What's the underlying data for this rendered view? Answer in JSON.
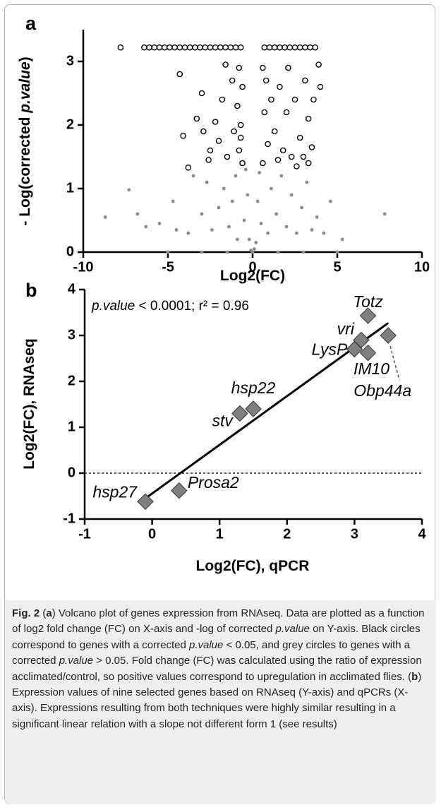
{
  "chart_data": [
    {
      "type": "scatter",
      "panel_label": "a",
      "xlabel": "Log2(FC)",
      "ylabel": [
        "- Log(corrected ",
        "p.value",
        ")"
      ],
      "xlim": [
        -10,
        10
      ],
      "xticks": [
        -10,
        -5,
        0,
        5,
        10
      ],
      "ylim": [
        0,
        3.5
      ],
      "yticks": [
        0,
        1,
        2,
        3
      ],
      "series": [
        {
          "color": "#000000",
          "fill": "#ffffff",
          "x": [
            -7.8,
            -6.4,
            -6.1,
            -5.8,
            -5.5,
            -5.2,
            -4.9,
            -4.6,
            -4.3,
            -4.0,
            -3.7,
            -3.4,
            -3.1,
            -2.8,
            -2.5,
            -2.2,
            -1.9,
            -1.6,
            -1.3,
            -1.0,
            -0.7,
            0.7,
            1.0,
            1.3,
            1.6,
            1.9,
            2.2,
            2.5,
            2.8,
            3.1,
            3.4,
            3.7,
            -4.3,
            -4.1,
            -3.8,
            -3.3,
            -2.2,
            -2.5,
            -2.9,
            -1.8,
            -1.5,
            -1.2,
            -2.0,
            -1.6,
            -1.1,
            -2.6,
            -3.0,
            -0.9,
            -0.8,
            -0.7,
            -0.6,
            -0.6,
            -0.8,
            -0.7,
            0.6,
            0.7,
            0.8,
            0.9,
            0.6,
            1.1,
            1.3,
            1.6,
            1.8,
            2.0,
            2.3,
            2.5,
            2.8,
            3.1,
            3.3,
            3.5,
            3.6,
            3.9,
            3.3,
            2.6,
            4.0,
            1.5,
            2.1,
            3.0
          ],
          "values": [
            3.22,
            3.22,
            3.22,
            3.22,
            3.22,
            3.22,
            3.22,
            3.22,
            3.22,
            3.22,
            3.22,
            3.22,
            3.22,
            3.22,
            3.22,
            3.22,
            3.22,
            3.22,
            3.22,
            3.22,
            3.22,
            3.22,
            3.22,
            3.22,
            3.22,
            3.22,
            3.22,
            3.22,
            3.22,
            3.22,
            3.22,
            3.22,
            2.8,
            1.83,
            1.33,
            2.1,
            2.05,
            1.6,
            1.9,
            2.4,
            1.5,
            2.7,
            1.75,
            2.95,
            1.9,
            1.45,
            2.5,
            2.3,
            1.6,
            2.0,
            2.6,
            1.4,
            2.9,
            1.8,
            1.4,
            2.2,
            2.7,
            1.7,
            2.9,
            2.4,
            1.9,
            2.6,
            1.6,
            2.2,
            1.5,
            2.4,
            1.8,
            2.7,
            2.1,
            1.65,
            2.4,
            2.95,
            1.4,
            1.35,
            2.6,
            1.45,
            2.9,
            1.5
          ]
        },
        {
          "color": "#8c8c8c",
          "fill": "#8c8c8c",
          "x": [
            -0.4,
            0.4,
            -0.3,
            0.3,
            -0.5,
            0.5,
            -0.2,
            0.2,
            0.1,
            -0.1,
            0,
            -8.7,
            -7.3,
            -6.8,
            -6.3,
            -5.5,
            -4.7,
            -4.5,
            -3.8,
            -3.5,
            -3.0,
            -2.7,
            -2.4,
            -2.0,
            -1.7,
            -1.4,
            -1.2,
            -1.0,
            -0.9,
            0.9,
            1.1,
            1.4,
            1.7,
            2.0,
            2.3,
            2.6,
            2.9,
            3.2,
            3.5,
            3.8,
            4.2,
            4.6,
            5.3,
            7.8,
            -5,
            -3,
            -1.5,
            1.5,
            3,
            5
          ],
          "values": [
            1.3,
            1.25,
            0.9,
            0.8,
            0.5,
            0.45,
            0.2,
            0.15,
            0.05,
            0.03,
            0,
            0.55,
            0.98,
            0.6,
            0.4,
            0.45,
            0.8,
            0.35,
            0.3,
            1.2,
            0.6,
            1.1,
            0.35,
            0.7,
            1.0,
            0.4,
            0.8,
            1.2,
            0.2,
            0.3,
            1.0,
            0.6,
            1.2,
            0.4,
            0.9,
            0.3,
            0.7,
            1.1,
            0.35,
            0.55,
            0.3,
            0.8,
            0.2,
            0.6,
            0,
            0,
            0,
            0,
            0,
            0
          ]
        }
      ]
    },
    {
      "type": "scatter",
      "panel_label": "b",
      "xlabel": "Log2(FC), qPCR",
      "ylabel": "Log2(FC), RNAseq",
      "annotation": [
        "p.value",
        " < 0.0001; r² = 0.96"
      ],
      "xlim": [
        -1,
        4
      ],
      "xticks": [
        -1,
        0,
        1,
        2,
        3,
        4
      ],
      "ylim": [
        -1,
        4
      ],
      "yticks": [
        -1,
        0,
        1,
        2,
        3,
        4
      ],
      "series": [
        {
          "color": "#7f7f7f",
          "labels": [
            "hsp27",
            "Prosa2",
            "stv",
            "hsp22",
            "LysP",
            "vri",
            "IM10",
            "Totz",
            "Obp44a"
          ],
          "x": [
            -0.1,
            0.4,
            1.3,
            1.5,
            3.0,
            3.1,
            3.2,
            3.2,
            3.5
          ],
          "values": [
            -0.62,
            -0.38,
            1.3,
            1.4,
            2.7,
            2.9,
            2.62,
            3.43,
            3.0
          ]
        }
      ],
      "fit_line": {
        "x": [
          -0.1,
          3.5
        ],
        "y": [
          -0.55,
          3.27
        ]
      },
      "hline": 0
    }
  ],
  "caption": [
    "Fig. 2",
    " (",
    "a",
    ") Volcano plot of genes expression from RNAseq. Data are plotted as a function of log2 fold change (FC) on X-axis and -log of corrected ",
    "p.value",
    " on Y-axis. Black circles correspond to genes with a corrected ",
    "p.value",
    " < 0.05, and grey circles to genes with a corrected ",
    "p.value",
    " > 0.05. Fold change (FC) was calculated using the ratio of expression acclimated/control, so positive values correspond to upregulation in acclimated flies. (",
    "b",
    ") Expression values of nine selected genes based on RNAseq (Y-axis) and qPCRs (X-axis). Expressions resulting from both techniques were highly similar resulting in a significant linear relation with a slope not different form 1 (see results)"
  ]
}
